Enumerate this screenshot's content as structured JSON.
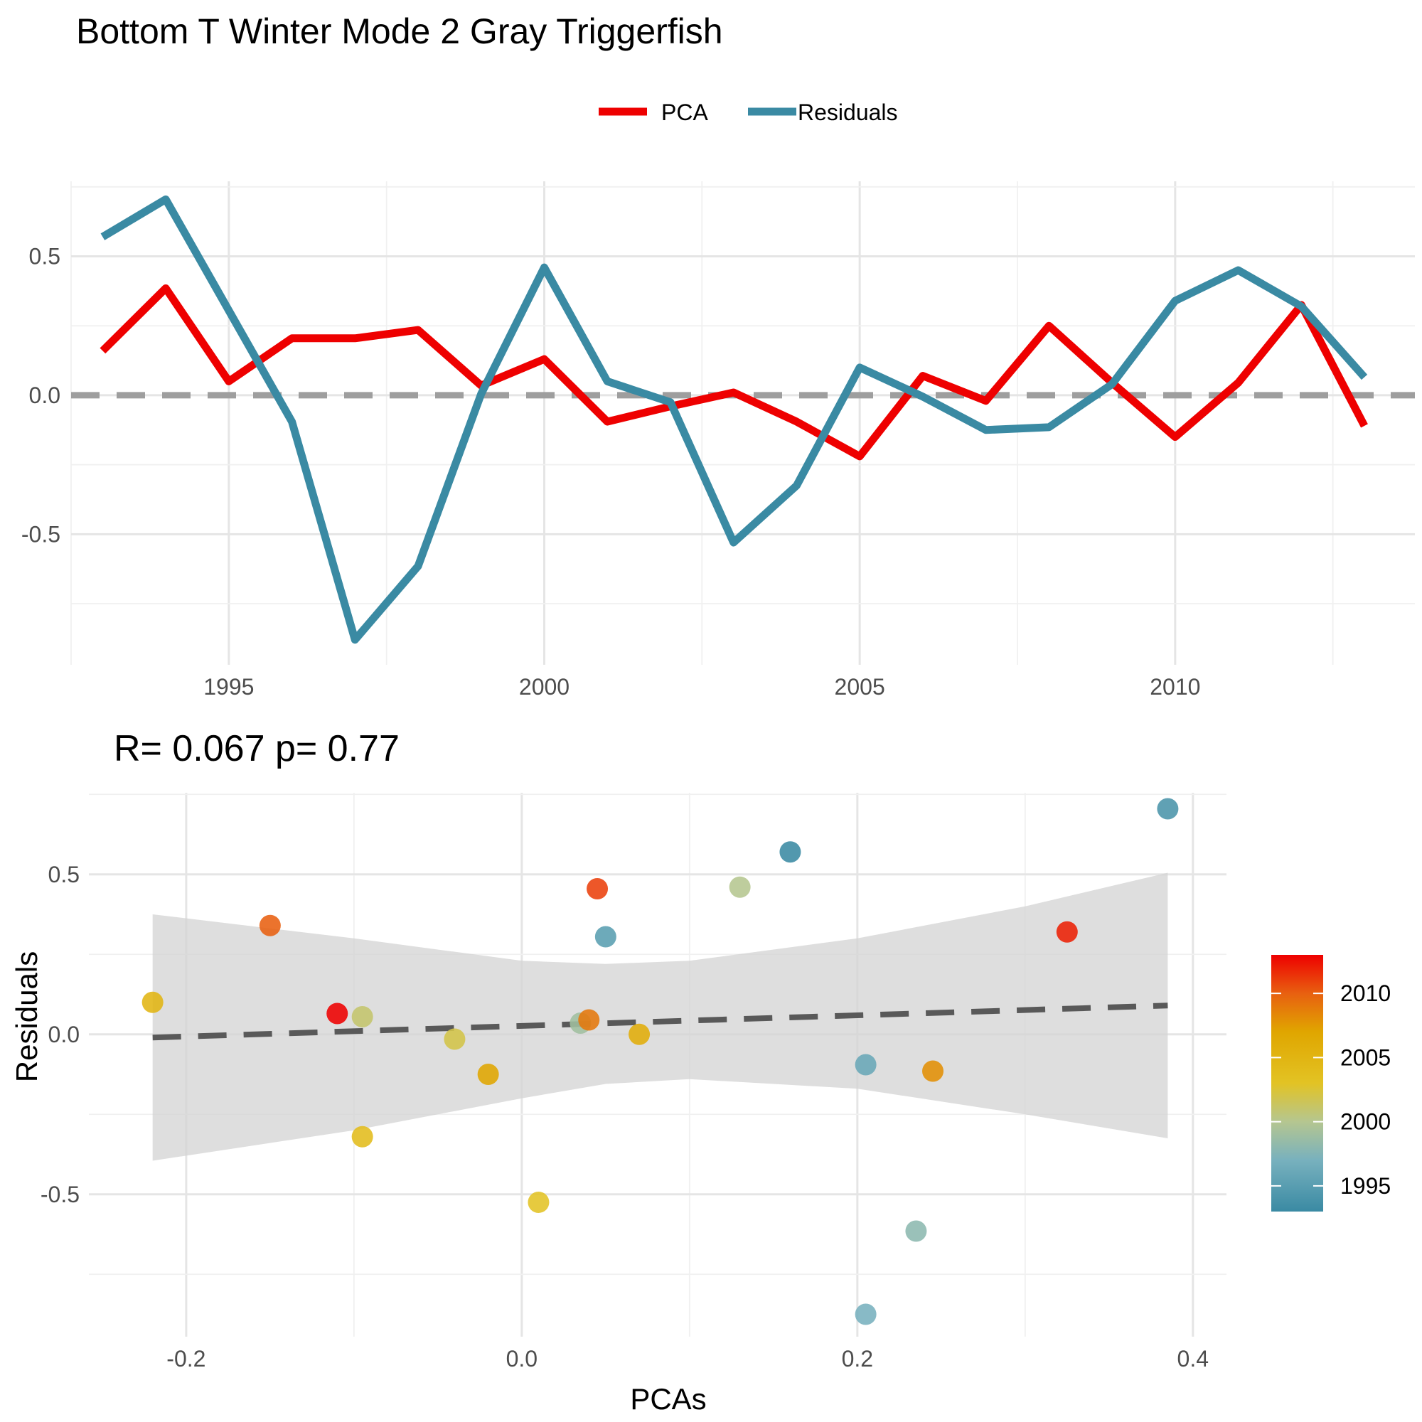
{
  "title": "Bottom T Winter Mode 2 Gray Triggerfish",
  "chart_data": [
    {
      "type": "line",
      "legend": {
        "position": "top",
        "entries": [
          "PCA",
          "Residuals"
        ]
      },
      "x": [
        1993,
        1994,
        1995,
        1996,
        1997,
        1998,
        1999,
        2000,
        2001,
        2002,
        2003,
        2004,
        2005,
        2006,
        2007,
        2008,
        2009,
        2010,
        2011,
        2012,
        2013
      ],
      "series": [
        {
          "name": "PCA",
          "color": "#ee0000",
          "values": [
            0.16,
            0.385,
            0.05,
            0.205,
            0.205,
            0.235,
            0.035,
            0.13,
            -0.095,
            -0.04,
            0.01,
            -0.095,
            -0.22,
            0.07,
            -0.02,
            0.25,
            0.045,
            -0.15,
            0.045,
            0.325,
            -0.11
          ]
        },
        {
          "name": "Residuals",
          "color": "#3a8aa3",
          "values": [
            0.57,
            0.705,
            0.305,
            -0.095,
            -0.88,
            -0.615,
            0.005,
            0.46,
            0.05,
            -0.025,
            -0.53,
            -0.325,
            0.1,
            -0.005,
            -0.125,
            -0.115,
            0.04,
            0.34,
            0.45,
            0.32,
            0.065
          ]
        }
      ],
      "reference_line": {
        "y": 0,
        "style": "dashed",
        "color": "#9e9e9e"
      },
      "xlim": [
        1992.5,
        2013.8
      ],
      "ylim": [
        -0.97,
        0.77
      ],
      "x_ticks": [
        1995,
        2000,
        2005,
        2010
      ],
      "x_tick_labels": [
        "1995",
        "2000",
        "2005",
        "2010"
      ],
      "y_ticks": [
        -0.5,
        0.0,
        0.5
      ],
      "y_tick_labels": [
        "-0.5",
        "0.0",
        "0.5"
      ],
      "grid": true
    },
    {
      "type": "scatter",
      "subtitle": "R= 0.067  p= 0.77",
      "xlabel": "PCAs",
      "ylabel": "Residuals",
      "xlim": [
        -0.258,
        0.42
      ],
      "ylim": [
        -0.945,
        0.755
      ],
      "x_ticks": [
        -0.2,
        0.0,
        0.2,
        0.4
      ],
      "x_tick_labels": [
        "-0.2",
        "0.0",
        "0.2",
        "0.4"
      ],
      "y_ticks": [
        -0.5,
        0.0,
        0.5
      ],
      "y_tick_labels": [
        "-0.5",
        "0.0",
        "0.5"
      ],
      "grid": true,
      "points": [
        {
          "year": 1993,
          "x": 0.16,
          "y": 0.57
        },
        {
          "year": 1994,
          "x": 0.385,
          "y": 0.705
        },
        {
          "year": 1995,
          "x": 0.05,
          "y": 0.305
        },
        {
          "year": 1996,
          "x": 0.205,
          "y": -0.095
        },
        {
          "year": 1997,
          "x": 0.205,
          "y": -0.875
        },
        {
          "year": 1998,
          "x": 0.235,
          "y": -0.615
        },
        {
          "year": 1999,
          "x": 0.035,
          "y": 0.035
        },
        {
          "year": 2000,
          "x": 0.13,
          "y": 0.46
        },
        {
          "year": 2001,
          "x": -0.095,
          "y": 0.055
        },
        {
          "year": 2002,
          "x": -0.04,
          "y": -0.015
        },
        {
          "year": 2003,
          "x": 0.01,
          "y": -0.525
        },
        {
          "year": 2004,
          "x": -0.095,
          "y": -0.32
        },
        {
          "year": 2005,
          "x": -0.22,
          "y": 0.1
        },
        {
          "year": 2006,
          "x": 0.07,
          "y": 0.0
        },
        {
          "year": 2007,
          "x": -0.02,
          "y": -0.125
        },
        {
          "year": 2008,
          "x": 0.245,
          "y": -0.115
        },
        {
          "year": 2009,
          "x": 0.04,
          "y": 0.045
        },
        {
          "year": 2010,
          "x": -0.15,
          "y": 0.34
        },
        {
          "year": 2011,
          "x": 0.045,
          "y": 0.455
        },
        {
          "year": 2012,
          "x": 0.325,
          "y": 0.32
        },
        {
          "year": 2013,
          "x": -0.11,
          "y": 0.065
        }
      ],
      "fit": {
        "type": "linear",
        "style": "dashed",
        "color": "#595959",
        "x": [
          -0.22,
          0.385
        ],
        "y": [
          -0.01,
          0.09
        ]
      },
      "confidence_band": {
        "color": "#d3d3d3",
        "x": [
          -0.22,
          -0.1,
          0.0,
          0.05,
          0.1,
          0.2,
          0.3,
          0.385
        ],
        "upper": [
          0.375,
          0.3,
          0.23,
          0.22,
          0.23,
          0.3,
          0.4,
          0.505
        ],
        "lower": [
          -0.395,
          -0.3,
          -0.2,
          -0.155,
          -0.14,
          -0.17,
          -0.25,
          -0.325
        ]
      },
      "colorbar": {
        "label_ticks": [
          1995,
          2000,
          2005,
          2010
        ],
        "tick_labels": [
          "1995",
          "2000",
          "2005",
          "2010"
        ],
        "range": [
          1993,
          2013
        ],
        "stops": [
          {
            "year": 1993,
            "color": "#3a8aa3"
          },
          {
            "year": 1997,
            "color": "#78b1be"
          },
          {
            "year": 2000,
            "color": "#b5c690"
          },
          {
            "year": 2003,
            "color": "#e2c324"
          },
          {
            "year": 2007,
            "color": "#e0a600"
          },
          {
            "year": 2010,
            "color": "#e86010"
          },
          {
            "year": 2013,
            "color": "#ee0000"
          }
        ]
      }
    }
  ]
}
